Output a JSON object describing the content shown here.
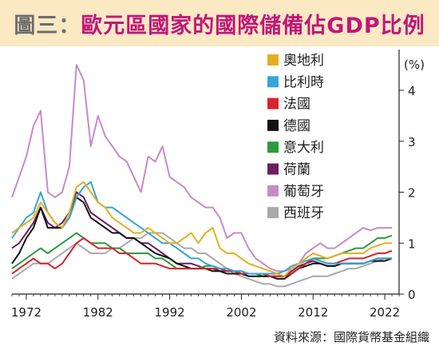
{
  "header": {
    "title_prefix": "圖三：",
    "title_main": "歐元區國家的國際儲備佔GDP比例"
  },
  "source": "資料來源：國際貨幣基金組織",
  "chart_data": {
    "type": "line",
    "ylabel": "(%)",
    "ylim": [
      0,
      4.8
    ],
    "y_ticks": [
      0,
      1,
      2,
      3,
      4
    ],
    "x_ticks": [
      1972,
      1982,
      1992,
      2002,
      2012,
      2022
    ],
    "xlim": [
      1970,
      2024
    ],
    "y_axis_position": "right",
    "grid": false,
    "legend_position": "top-center",
    "x": [
      1970,
      1971,
      1972,
      1973,
      1974,
      1975,
      1976,
      1977,
      1978,
      1979,
      1980,
      1981,
      1982,
      1983,
      1984,
      1985,
      1986,
      1987,
      1988,
      1989,
      1990,
      1991,
      1992,
      1993,
      1994,
      1995,
      1996,
      1997,
      1998,
      1999,
      2000,
      2001,
      2002,
      2003,
      2004,
      2005,
      2006,
      2007,
      2008,
      2009,
      2010,
      2011,
      2012,
      2013,
      2014,
      2015,
      2016,
      2017,
      2018,
      2019,
      2020,
      2021,
      2022,
      2023
    ],
    "series": [
      {
        "name": "奧地利",
        "color": "#e3b020",
        "values": [
          1.2,
          1.3,
          1.4,
          1.5,
          1.8,
          1.6,
          1.4,
          1.3,
          1.6,
          2.1,
          2.2,
          2.0,
          1.8,
          1.7,
          1.5,
          1.4,
          1.3,
          1.2,
          1.2,
          1.3,
          1.2,
          1.1,
          1.0,
          1.0,
          1.1,
          1.2,
          1.0,
          1.2,
          1.3,
          0.9,
          0.8,
          0.8,
          0.7,
          0.6,
          0.55,
          0.5,
          0.45,
          0.4,
          0.35,
          0.5,
          0.6,
          0.7,
          0.8,
          0.75,
          0.7,
          0.75,
          0.8,
          0.8,
          0.8,
          0.8,
          0.9,
          0.95,
          1.0,
          1.0
        ]
      },
      {
        "name": "比利時",
        "color": "#35a6d6",
        "values": [
          1.1,
          1.3,
          1.5,
          1.6,
          2.0,
          1.6,
          1.4,
          1.3,
          1.5,
          1.9,
          2.1,
          2.2,
          1.8,
          1.7,
          1.7,
          1.6,
          1.5,
          1.4,
          1.3,
          1.2,
          1.1,
          1.0,
          1.0,
          0.9,
          0.8,
          0.7,
          0.7,
          0.6,
          0.55,
          0.5,
          0.5,
          0.45,
          0.45,
          0.4,
          0.4,
          0.4,
          0.4,
          0.4,
          0.45,
          0.55,
          0.6,
          0.65,
          0.7,
          0.65,
          0.6,
          0.6,
          0.6,
          0.6,
          0.6,
          0.6,
          0.65,
          0.7,
          0.7,
          0.7
        ]
      },
      {
        "name": "法國",
        "color": "#d9232d",
        "values": [
          0.4,
          0.5,
          0.6,
          0.7,
          0.6,
          0.6,
          0.5,
          0.6,
          0.8,
          1.0,
          1.1,
          1.0,
          0.9,
          0.9,
          0.9,
          0.8,
          0.8,
          0.7,
          0.6,
          0.6,
          0.6,
          0.55,
          0.5,
          0.5,
          0.5,
          0.5,
          0.5,
          0.5,
          0.5,
          0.5,
          0.45,
          0.45,
          0.4,
          0.4,
          0.4,
          0.4,
          0.35,
          0.35,
          0.35,
          0.4,
          0.5,
          0.6,
          0.7,
          0.65,
          0.6,
          0.6,
          0.65,
          0.7,
          0.7,
          0.7,
          0.75,
          0.8,
          0.8,
          0.85
        ]
      },
      {
        "name": "德國",
        "color": "#111111",
        "values": [
          0.6,
          0.8,
          1.1,
          1.3,
          1.7,
          1.3,
          1.3,
          1.3,
          1.5,
          1.9,
          1.8,
          1.5,
          1.4,
          1.3,
          1.2,
          1.2,
          1.1,
          1.1,
          1.0,
          0.9,
          0.8,
          0.75,
          0.7,
          0.6,
          0.55,
          0.5,
          0.5,
          0.5,
          0.45,
          0.45,
          0.4,
          0.4,
          0.4,
          0.35,
          0.35,
          0.35,
          0.35,
          0.3,
          0.3,
          0.4,
          0.5,
          0.55,
          0.6,
          0.6,
          0.55,
          0.55,
          0.6,
          0.6,
          0.6,
          0.6,
          0.65,
          0.65,
          0.65,
          0.7
        ]
      },
      {
        "name": "意大利",
        "color": "#2c9b3d",
        "values": [
          0.5,
          0.6,
          0.7,
          0.8,
          0.9,
          0.8,
          0.9,
          1.0,
          1.1,
          1.2,
          1.1,
          1.0,
          1.0,
          1.0,
          0.9,
          0.9,
          0.8,
          0.8,
          0.8,
          0.8,
          0.7,
          0.7,
          0.6,
          0.5,
          0.5,
          0.5,
          0.5,
          0.55,
          0.55,
          0.5,
          0.5,
          0.45,
          0.45,
          0.4,
          0.4,
          0.35,
          0.35,
          0.35,
          0.35,
          0.4,
          0.5,
          0.6,
          0.7,
          0.7,
          0.7,
          0.75,
          0.8,
          0.85,
          0.9,
          0.9,
          1.0,
          1.1,
          1.1,
          1.15
        ]
      },
      {
        "name": "荷蘭",
        "color": "#6a1f5e",
        "values": [
          0.9,
          1.0,
          1.2,
          1.4,
          1.7,
          1.4,
          1.3,
          1.4,
          1.6,
          2.0,
          1.9,
          1.6,
          1.5,
          1.4,
          1.3,
          1.2,
          1.1,
          1.1,
          1.0,
          1.0,
          0.9,
          0.8,
          0.7,
          0.6,
          0.6,
          0.6,
          0.55,
          0.5,
          0.5,
          0.45,
          0.45,
          0.45,
          0.4,
          0.4,
          0.4,
          0.4,
          0.35,
          0.35,
          0.35,
          0.45,
          0.55,
          0.6,
          0.65,
          0.6,
          0.55,
          0.55,
          0.6,
          0.6,
          0.6,
          0.6,
          0.65,
          0.7,
          0.7,
          0.7
        ]
      },
      {
        "name": "葡萄牙",
        "color": "#c88ac6",
        "values": [
          1.9,
          2.3,
          2.7,
          3.3,
          3.6,
          2.0,
          1.9,
          2.0,
          2.5,
          4.5,
          4.2,
          2.9,
          3.5,
          3.1,
          2.9,
          2.7,
          2.6,
          2.3,
          2.0,
          2.7,
          2.6,
          2.9,
          2.3,
          2.2,
          2.1,
          1.9,
          1.8,
          1.7,
          1.7,
          1.5,
          1.1,
          1.2,
          1.2,
          0.9,
          0.7,
          0.6,
          0.5,
          0.45,
          0.45,
          0.5,
          0.6,
          0.8,
          0.9,
          1.0,
          0.9,
          0.9,
          1.0,
          1.1,
          1.2,
          1.3,
          1.25,
          1.3,
          1.3,
          1.3
        ]
      },
      {
        "name": "西班牙",
        "color": "#a9a9a9",
        "values": [
          0.3,
          0.4,
          0.5,
          0.6,
          0.6,
          0.6,
          0.7,
          0.8,
          0.9,
          1.0,
          0.9,
          0.8,
          0.8,
          0.8,
          0.9,
          0.9,
          1.0,
          1.1,
          1.1,
          1.2,
          1.2,
          1.2,
          1.1,
          1.0,
          0.9,
          0.9,
          0.8,
          0.8,
          0.7,
          0.6,
          0.5,
          0.4,
          0.35,
          0.3,
          0.25,
          0.2,
          0.2,
          0.15,
          0.15,
          0.2,
          0.25,
          0.3,
          0.35,
          0.35,
          0.35,
          0.4,
          0.45,
          0.5,
          0.5,
          0.55,
          0.6,
          0.65,
          0.7,
          0.7
        ]
      }
    ]
  }
}
